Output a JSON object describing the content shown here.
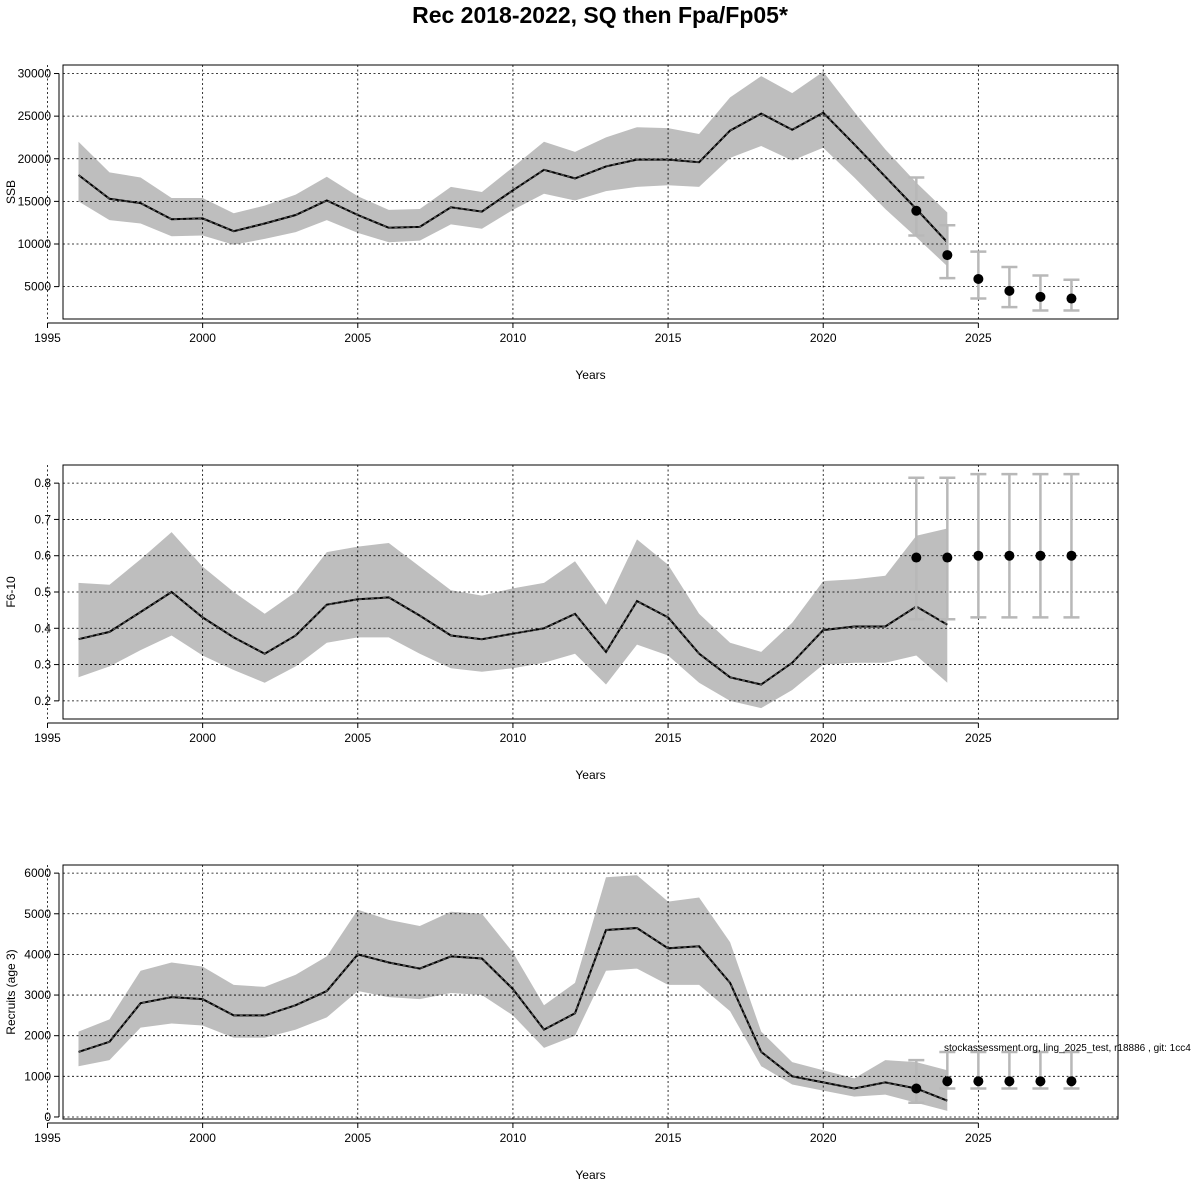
{
  "title": "Rec 2018-2022, SQ then Fpa/Fp05*",
  "footnote": "stockassessment.org, ling_2025_test, r18886 , git: 1cc4",
  "chart_data": [
    {
      "type": "line",
      "name": "ssb",
      "ylabel": "SSB",
      "xlabel": "Years",
      "xlim": [
        1995.5,
        2029.5
      ],
      "ylim": [
        1200,
        31000
      ],
      "x_ticks": [
        1995,
        2000,
        2005,
        2010,
        2015,
        2020,
        2025
      ],
      "y_ticks": [
        5000,
        10000,
        15000,
        20000,
        25000,
        30000
      ],
      "grid": true,
      "years": [
        1996,
        1997,
        1998,
        1999,
        2000,
        2001,
        2002,
        2003,
        2004,
        2005,
        2006,
        2007,
        2008,
        2009,
        2010,
        2011,
        2012,
        2013,
        2014,
        2015,
        2016,
        2017,
        2018,
        2019,
        2020,
        2021,
        2022,
        2023,
        2024
      ],
      "estimate": [
        18100,
        15300,
        14800,
        12900,
        13000,
        11500,
        12400,
        13400,
        15100,
        13400,
        11900,
        12000,
        14300,
        13800,
        16300,
        18700,
        17700,
        19100,
        19900,
        19900,
        19600,
        23300,
        25300,
        23400,
        25400,
        21700,
        17900,
        14100,
        10200
      ],
      "lower": [
        15000,
        12800,
        12400,
        10900,
        11000,
        9900,
        10600,
        11400,
        12800,
        11300,
        10200,
        10400,
        12300,
        11800,
        14000,
        15900,
        15100,
        16200,
        16700,
        16900,
        16700,
        20100,
        21500,
        19800,
        21300,
        17800,
        14100,
        10800,
        7400
      ],
      "upper": [
        22000,
        18400,
        17800,
        15400,
        15400,
        13600,
        14500,
        15800,
        17900,
        15600,
        14000,
        14100,
        16700,
        16100,
        19000,
        22000,
        20800,
        22500,
        23700,
        23600,
        22900,
        27200,
        29700,
        27700,
        30200,
        25500,
        21100,
        17200,
        13700
      ],
      "forecast": {
        "years": [
          2023,
          2024,
          2025,
          2026,
          2027,
          2028
        ],
        "median": [
          13900,
          8700,
          5900,
          4500,
          3800,
          3600
        ],
        "lower": [
          11000,
          6000,
          3600,
          2600,
          2200,
          2200
        ],
        "upper": [
          17800,
          12200,
          9100,
          7300,
          6300,
          5800
        ]
      }
    },
    {
      "type": "line",
      "name": "fbar",
      "ylabel": "F6-10",
      "xlabel": "Years",
      "xlim": [
        1995.5,
        2029.5
      ],
      "ylim": [
        0.15,
        0.85
      ],
      "x_ticks": [
        1995,
        2000,
        2005,
        2010,
        2015,
        2020,
        2025
      ],
      "y_ticks": [
        0.2,
        0.3,
        0.4,
        0.5,
        0.6,
        0.7,
        0.8
      ],
      "grid": true,
      "years": [
        1996,
        1997,
        1998,
        1999,
        2000,
        2001,
        2002,
        2003,
        2004,
        2005,
        2006,
        2007,
        2008,
        2009,
        2010,
        2011,
        2012,
        2013,
        2014,
        2015,
        2016,
        2017,
        2018,
        2019,
        2020,
        2021,
        2022,
        2023,
        2024
      ],
      "estimate": [
        0.37,
        0.39,
        0.445,
        0.5,
        0.43,
        0.375,
        0.33,
        0.38,
        0.465,
        0.48,
        0.485,
        0.435,
        0.38,
        0.37,
        0.385,
        0.4,
        0.44,
        0.335,
        0.475,
        0.43,
        0.33,
        0.265,
        0.245,
        0.305,
        0.395,
        0.405,
        0.405,
        0.46,
        0.41
      ],
      "lower": [
        0.265,
        0.295,
        0.34,
        0.38,
        0.325,
        0.285,
        0.25,
        0.295,
        0.36,
        0.375,
        0.375,
        0.33,
        0.29,
        0.28,
        0.29,
        0.305,
        0.33,
        0.245,
        0.355,
        0.325,
        0.25,
        0.2,
        0.18,
        0.23,
        0.3,
        0.305,
        0.305,
        0.325,
        0.25
      ],
      "upper": [
        0.525,
        0.52,
        0.59,
        0.665,
        0.57,
        0.5,
        0.44,
        0.5,
        0.61,
        0.625,
        0.635,
        0.57,
        0.505,
        0.49,
        0.51,
        0.525,
        0.585,
        0.465,
        0.645,
        0.575,
        0.44,
        0.36,
        0.335,
        0.415,
        0.53,
        0.535,
        0.545,
        0.655,
        0.675
      ],
      "forecast": {
        "years": [
          2023,
          2024,
          2025,
          2026,
          2027,
          2028
        ],
        "median": [
          0.595,
          0.595,
          0.6,
          0.6,
          0.6,
          0.6
        ],
        "lower": [
          0.425,
          0.425,
          0.43,
          0.43,
          0.43,
          0.43
        ],
        "upper": [
          0.815,
          0.815,
          0.825,
          0.825,
          0.825,
          0.825
        ]
      }
    },
    {
      "type": "line",
      "name": "recruits",
      "ylabel": "Recruits (age 3)",
      "xlabel": "Years",
      "xlim": [
        1995.5,
        2029.5
      ],
      "ylim": [
        -50,
        6200
      ],
      "x_ticks": [
        1995,
        2000,
        2005,
        2010,
        2015,
        2020,
        2025
      ],
      "y_ticks": [
        0,
        1000,
        2000,
        3000,
        4000,
        5000,
        6000
      ],
      "grid": true,
      "years": [
        1996,
        1997,
        1998,
        1999,
        2000,
        2001,
        2002,
        2003,
        2004,
        2005,
        2006,
        2007,
        2008,
        2009,
        2010,
        2011,
        2012,
        2013,
        2014,
        2015,
        2016,
        2017,
        2018,
        2019,
        2020,
        2021,
        2022,
        2023,
        2024
      ],
      "estimate": [
        1600,
        1850,
        2800,
        2950,
        2900,
        2500,
        2500,
        2750,
        3100,
        4000,
        3800,
        3650,
        3950,
        3900,
        3150,
        2150,
        2550,
        4600,
        4650,
        4150,
        4200,
        3300,
        1600,
        1000,
        850,
        700,
        850,
        700,
        400
      ],
      "lower": [
        1250,
        1400,
        2200,
        2300,
        2250,
        1950,
        1950,
        2150,
        2450,
        3100,
        2950,
        2900,
        3050,
        3000,
        2500,
        1700,
        2000,
        3600,
        3650,
        3250,
        3250,
        2600,
        1250,
        800,
        650,
        500,
        550,
        350,
        150
      ],
      "upper": [
        2100,
        2400,
        3600,
        3800,
        3700,
        3250,
        3200,
        3500,
        3950,
        5100,
        4850,
        4700,
        5050,
        5000,
        4050,
        2750,
        3300,
        5900,
        5950,
        5300,
        5400,
        4300,
        2100,
        1350,
        1150,
        950,
        1400,
        1350,
        1150
      ],
      "forecast": {
        "years": [
          2023,
          2024,
          2025,
          2026,
          2027,
          2028
        ],
        "median": [
          700,
          880,
          880,
          880,
          880,
          880
        ],
        "lower": [
          350,
          700,
          700,
          700,
          700,
          700
        ],
        "upper": [
          1400,
          1600,
          1600,
          1600,
          1600,
          1600
        ]
      }
    }
  ]
}
